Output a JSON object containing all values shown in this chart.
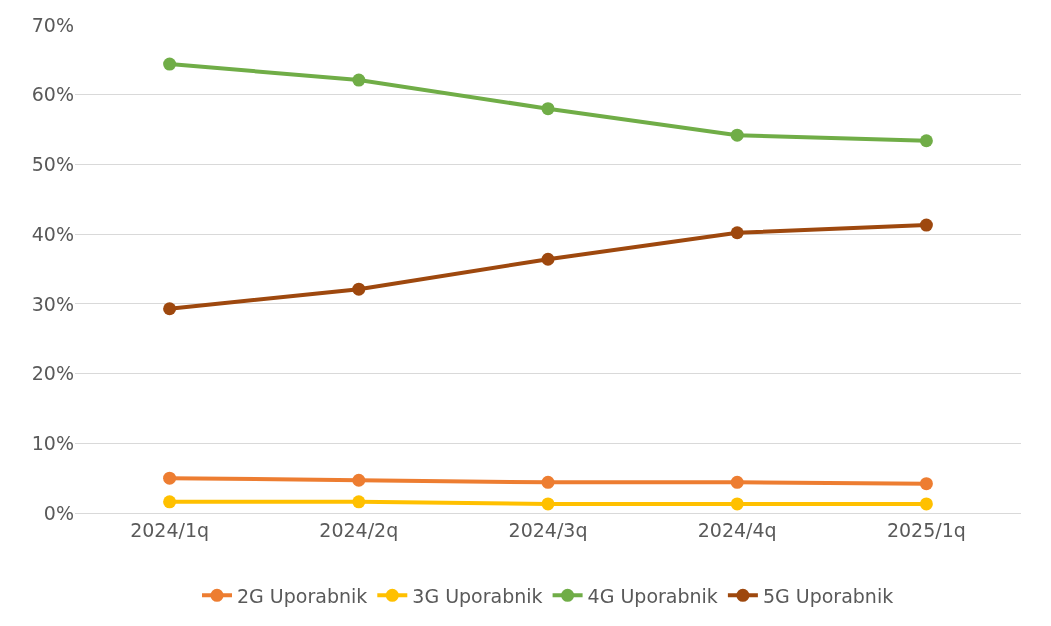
{
  "chart_data": {
    "type": "line",
    "categories": [
      "2024/1q",
      "2024/2q",
      "2024/3q",
      "2024/4q",
      "2025/1q"
    ],
    "series": [
      {
        "name": "2G Uporabnik",
        "color": "#ed7d31",
        "values": [
          5.0,
          4.7,
          4.4,
          4.4,
          4.2
        ]
      },
      {
        "name": "3G Uporabnik",
        "color": "#ffc000",
        "values": [
          1.6,
          1.6,
          1.3,
          1.3,
          1.3
        ]
      },
      {
        "name": "4G Uporabnik",
        "color": "#70ad47",
        "values": [
          64.4,
          62.1,
          58.0,
          54.2,
          53.4
        ]
      },
      {
        "name": "5G Uporabnik",
        "color": "#9e480e",
        "values": [
          29.3,
          32.1,
          36.4,
          40.2,
          41.3
        ]
      }
    ],
    "ylim": [
      0,
      70
    ],
    "yticks": [
      {
        "value": 0,
        "label": "0%"
      },
      {
        "value": 10,
        "label": "10%"
      },
      {
        "value": 20,
        "label": "20%"
      },
      {
        "value": 30,
        "label": "30%"
      },
      {
        "value": 40,
        "label": "40%"
      },
      {
        "value": 50,
        "label": "50%"
      },
      {
        "value": 60,
        "label": "60%"
      },
      {
        "value": 70,
        "label": "70%"
      }
    ],
    "grid": "y",
    "legend": "bottom",
    "marker": "circle",
    "line_style": "solid"
  }
}
